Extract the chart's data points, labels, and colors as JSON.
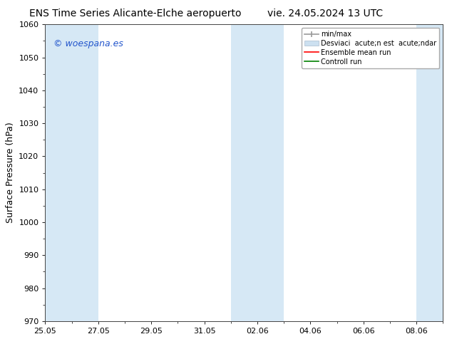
{
  "title_left": "ENS Time Series Alicante-Elche aeropuerto",
  "title_right": "vie. 24.05.2024 13 UTC",
  "ylabel": "Surface Pressure (hPa)",
  "ylim": [
    970,
    1060
  ],
  "yticks": [
    970,
    980,
    990,
    1000,
    1010,
    1020,
    1030,
    1040,
    1050,
    1060
  ],
  "xlabel_dates": [
    "25.05",
    "27.05",
    "29.05",
    "31.05",
    "02.06",
    "04.06",
    "06.06",
    "08.06"
  ],
  "x_tick_positions": [
    0,
    2,
    4,
    6,
    8,
    10,
    12,
    14
  ],
  "xlim": [
    0,
    15
  ],
  "bg_color": "#ffffff",
  "plot_bg_color": "#ffffff",
  "shaded_bands": [
    {
      "x_start": 0,
      "x_end": 2,
      "color": "#d6e8f5"
    },
    {
      "x_start": 7,
      "x_end": 9,
      "color": "#d6e8f5"
    },
    {
      "x_start": 14,
      "x_end": 15,
      "color": "#d6e8f5"
    }
  ],
  "watermark_text": "© woespana.es",
  "watermark_color": "#2255cc",
  "legend_label_minmax": "min/max",
  "legend_label_std": "Desviaci  acute;n est  acute;ndar",
  "legend_label_ens": "Ensemble mean run",
  "legend_label_ctrl": "Controll run",
  "legend_color_minmax": "#999999",
  "legend_color_std": "#cce0f0",
  "legend_color_ens": "#ff0000",
  "legend_color_ctrl": "#008000",
  "title_fontsize": 10,
  "ylabel_fontsize": 9,
  "tick_fontsize": 8,
  "legend_fontsize": 7,
  "watermark_fontsize": 9,
  "figwidth": 6.34,
  "figheight": 4.9,
  "dpi": 100
}
